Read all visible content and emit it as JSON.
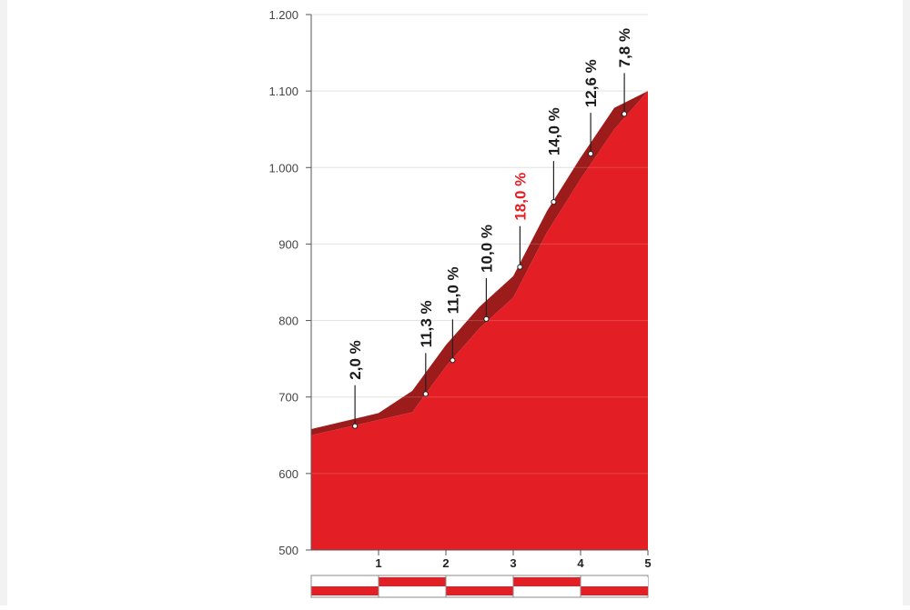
{
  "chart_data": {
    "type": "area",
    "title": "",
    "xlabel": "",
    "ylabel": "",
    "xlim": [
      0,
      5
    ],
    "ylim": [
      500,
      1200
    ],
    "x_ticks": [
      {
        "value": 1,
        "label": "1"
      },
      {
        "value": 2,
        "label": "2"
      },
      {
        "value": 3,
        "label": "3"
      },
      {
        "value": 4,
        "label": "4"
      },
      {
        "value": 5,
        "label": "5"
      }
    ],
    "y_ticks": [
      {
        "value": 500,
        "label": "500"
      },
      {
        "value": 600,
        "label": "600"
      },
      {
        "value": 700,
        "label": "700"
      },
      {
        "value": 800,
        "label": "800"
      },
      {
        "value": 900,
        "label": "900"
      },
      {
        "value": 1000,
        "label": "1.000"
      },
      {
        "value": 1100,
        "label": "1.100"
      },
      {
        "value": 1200,
        "label": "1.200"
      }
    ],
    "grid": true,
    "profile": {
      "x": [
        0,
        1.0,
        1.5,
        2.0,
        2.5,
        3.0,
        3.5,
        4.0,
        4.5,
        5.0
      ],
      "y": [
        650,
        670,
        680,
        740,
        790,
        830,
        915,
        985,
        1050,
        1100
      ]
    },
    "gradients": [
      {
        "x": 0.65,
        "y": 662,
        "label": "2,0 %",
        "max": false
      },
      {
        "x": 1.7,
        "y": 704,
        "label": "11,3 %",
        "max": false
      },
      {
        "x": 2.1,
        "y": 748,
        "label": "11,0 %",
        "max": false
      },
      {
        "x": 2.6,
        "y": 802,
        "label": "10,0 %",
        "max": false
      },
      {
        "x": 3.1,
        "y": 870,
        "label": "18,0 %",
        "max": true
      },
      {
        "x": 3.6,
        "y": 955,
        "label": "14,0 %",
        "max": false
      },
      {
        "x": 4.15,
        "y": 1018,
        "label": "12,6 %",
        "max": false
      },
      {
        "x": 4.65,
        "y": 1070,
        "label": "7,8 %",
        "max": false
      }
    ],
    "km_bar": {
      "segments": [
        {
          "km": 1,
          "top": "white",
          "bottom": "red"
        },
        {
          "km": 2,
          "top": "red",
          "bottom": "white"
        },
        {
          "km": 3,
          "top": "white",
          "bottom": "red"
        },
        {
          "km": 4,
          "top": "red",
          "bottom": "white"
        },
        {
          "km": 5,
          "top": "white",
          "bottom": "red"
        }
      ]
    },
    "colors": {
      "fill": "#e31e24",
      "band": "#9c1c1c",
      "grid": "#dddddd",
      "axis": "#555555",
      "max_label": "#e31e24"
    }
  }
}
